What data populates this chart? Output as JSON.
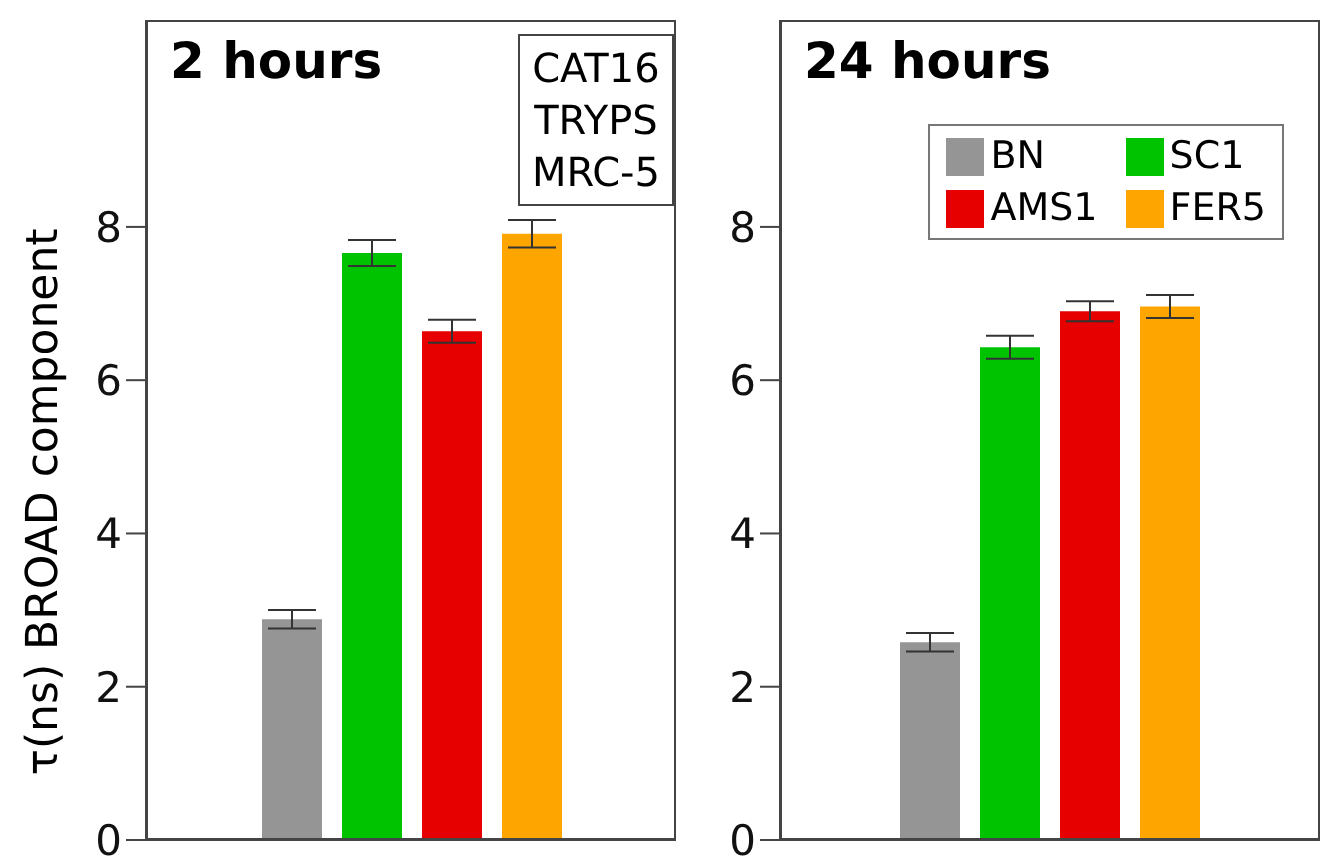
{
  "chart_data": [
    {
      "type": "bar",
      "title": "2 hours",
      "ylabel": "τ(ns) BROAD component",
      "categories": [
        null
      ],
      "series": [
        {
          "color": "#959595",
          "values": [
            2.88
          ],
          "errors": [
            0.12
          ]
        },
        {
          "color": "#00c300",
          "values": [
            7.66
          ],
          "errors": [
            0.17
          ]
        },
        {
          "color": "#e60000",
          "values": [
            6.64
          ],
          "errors": [
            0.15
          ]
        },
        {
          "color": "#ffa500",
          "values": [
            7.91
          ],
          "errors": [
            0.18
          ]
        }
      ],
      "annotations": [
        "CAT16",
        "TRYPS",
        "MRC-5"
      ],
      "ylim": [
        0,
        10.7
      ],
      "yticks": [
        0,
        2,
        4,
        6,
        8
      ],
      "tick_labels": "y",
      "grid": false,
      "legend": false
    },
    {
      "type": "bar",
      "title": "24 hours",
      "categories": [
        null
      ],
      "series": [
        {
          "name": "BN",
          "color": "#959595",
          "values": [
            2.58
          ],
          "errors": [
            0.12
          ]
        },
        {
          "name": "SC1",
          "color": "#00c300",
          "values": [
            6.43
          ],
          "errors": [
            0.15
          ]
        },
        {
          "name": "AMS1",
          "color": "#e60000",
          "values": [
            6.9
          ],
          "errors": [
            0.13
          ]
        },
        {
          "name": "FER5",
          "color": "#ffa500",
          "values": [
            6.96
          ],
          "errors": [
            0.15
          ]
        }
      ],
      "ylim": [
        0,
        10.7
      ],
      "yticks": [
        0,
        2,
        4,
        6,
        8
      ],
      "tick_labels": "y",
      "grid": false,
      "legend": "top right"
    }
  ]
}
